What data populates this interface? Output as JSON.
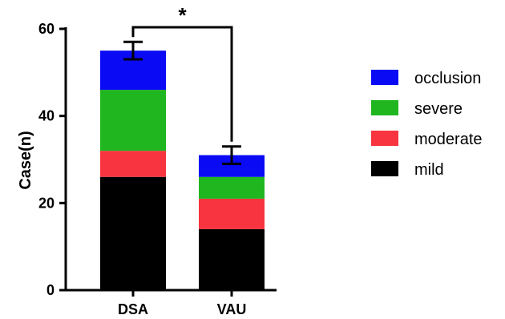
{
  "chart_data": {
    "type": "bar",
    "stacked": true,
    "categories": [
      "DSA",
      "VAU"
    ],
    "series": [
      {
        "name": "mild",
        "color": "#000000",
        "values": [
          26,
          14
        ]
      },
      {
        "name": "moderate",
        "color": "#f7343f",
        "values": [
          6,
          7
        ]
      },
      {
        "name": "severe",
        "color": "#1fb61f",
        "values": [
          14,
          5
        ]
      },
      {
        "name": "occlusion",
        "color": "#0a0af5",
        "values": [
          9,
          5
        ]
      }
    ],
    "error_bars": [
      {
        "category": "DSA",
        "low": 53,
        "high": 57
      },
      {
        "category": "VAU",
        "low": 29,
        "high": 33
      }
    ],
    "ylabel": "Case(n)",
    "xlabel": "",
    "ylim": [
      0,
      60
    ],
    "yticks": [
      0,
      20,
      40,
      60
    ],
    "legend_position": "right",
    "legend_order": [
      "occlusion",
      "severe",
      "moderate",
      "mild"
    ],
    "significance": {
      "label": "*",
      "between": [
        "DSA",
        "VAU"
      ]
    },
    "grid": false
  }
}
